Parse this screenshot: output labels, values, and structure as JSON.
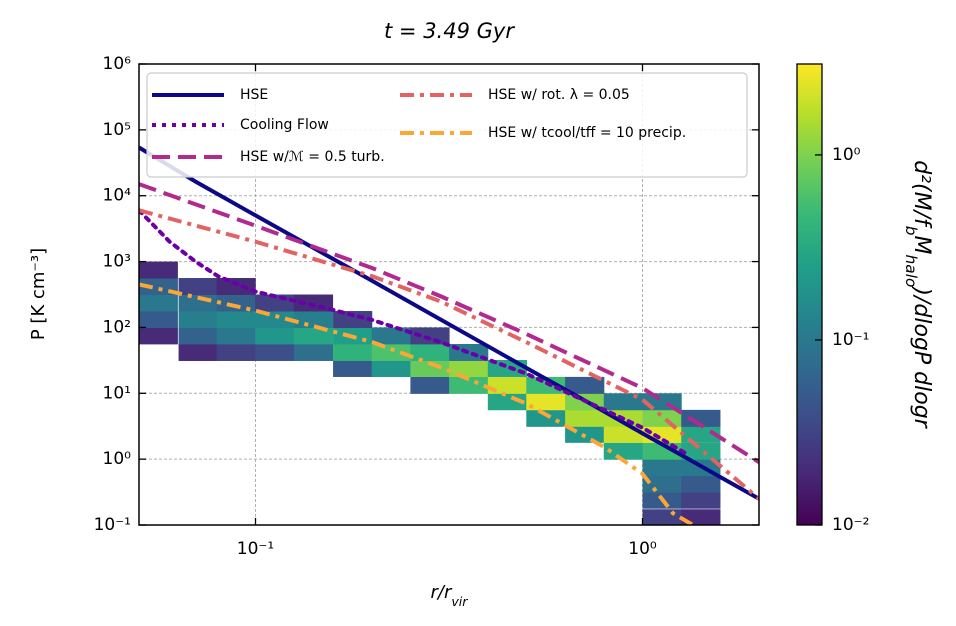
{
  "chart_data": {
    "type": "line",
    "title": "t = 3.49 Gyr",
    "xlabel": [
      "r/r",
      "vir"
    ],
    "ylabel": "P [K cm⁻³]",
    "xscale": "log",
    "yscale": "log",
    "xlim": [
      0.05,
      2
    ],
    "ylim": [
      0.1,
      1000000
    ],
    "xticks": [
      {
        "value": 0.1,
        "label": "10⁻¹"
      },
      {
        "value": 1,
        "label": "10⁰"
      }
    ],
    "yticks": [
      {
        "value": 0.1,
        "label": "10⁻¹"
      },
      {
        "value": 1,
        "label": "10⁰"
      },
      {
        "value": 10,
        "label": "10¹"
      },
      {
        "value": 100,
        "label": "10²"
      },
      {
        "value": 1000,
        "label": "10³"
      },
      {
        "value": 10000,
        "label": "10⁴"
      },
      {
        "value": 100000,
        "label": "10⁵"
      },
      {
        "value": 1000000,
        "label": "10⁶"
      }
    ],
    "grid": true,
    "legend": "upper left",
    "series": [
      {
        "name": "HSE",
        "color": "#0d0887",
        "dash": "solid",
        "x": [
          0.05,
          0.07,
          0.1,
          0.15,
          0.2,
          0.3,
          0.5,
          0.7,
          1.0,
          1.3,
          1.6,
          2.0
        ],
        "values": [
          54000,
          16400,
          5030,
          1320,
          511,
          133,
          24.5,
          8.1,
          2.46,
          1.04,
          0.52,
          0.25
        ]
      },
      {
        "name": "Cooling Flow",
        "color": "#6a00a8",
        "dash": "dotted",
        "x": [
          0.05,
          0.06,
          0.07,
          0.08,
          0.1,
          0.15,
          0.2,
          0.3,
          0.5,
          0.7,
          1.0,
          1.3
        ],
        "values": [
          6000,
          2000,
          1000,
          600,
          350,
          200,
          130,
          60,
          20,
          8,
          3,
          1.2
        ]
      },
      {
        "name": "HSE w/ℳ = 0.5 turb.",
        "color": "#b12a90",
        "dash": "dashed",
        "x": [
          0.05,
          0.1,
          0.2,
          0.3,
          0.5,
          1.0,
          2.0
        ],
        "values": [
          15000,
          3500,
          800,
          300,
          80,
          12,
          0.9
        ]
      },
      {
        "name": "HSE w/ rot. λ = 0.05",
        "color": "#e16462",
        "dash": "dashdot",
        "x": [
          0.05,
          0.1,
          0.2,
          0.3,
          0.5,
          1.0,
          2.0
        ],
        "values": [
          6000,
          2000,
          600,
          250,
          60,
          8,
          0.25
        ]
      },
      {
        "name": "HSE w/ tcool/tff = 10 precip.",
        "color": "#fca636",
        "dash": "dashdot",
        "x": [
          0.05,
          0.1,
          0.2,
          0.3,
          0.5,
          0.8,
          1.0,
          1.2,
          1.35
        ],
        "values": [
          450,
          180,
          60,
          25,
          7,
          1.5,
          0.6,
          0.15,
          0.1
        ]
      }
    ],
    "heatmap": {
      "cmap": "viridis",
      "clim": [
        0.01,
        3.1
      ],
      "cticks": [
        {
          "value": 0.01,
          "label": "10⁻²"
        },
        {
          "value": 0.1,
          "label": "10⁻¹"
        },
        {
          "value": 1,
          "label": "10⁰"
        }
      ],
      "colorbar_label": [
        "d²(M/f",
        "b",
        "M",
        "halo",
        ")/dlogP dlogr"
      ],
      "columns": [
        {
          "x": 0.056,
          "y": [
            75,
            133,
            237,
            422,
            750
          ],
          "z": [
            0.02,
            0.05,
            0.1,
            0.06,
            0.02
          ]
        },
        {
          "x": 0.071,
          "y": [
            42,
            75,
            133,
            237,
            422
          ],
          "z": [
            0.02,
            0.06,
            0.12,
            0.08,
            0.03
          ]
        },
        {
          "x": 0.089,
          "y": [
            42,
            75,
            133,
            237,
            422
          ],
          "z": [
            0.03,
            0.1,
            0.15,
            0.06,
            0.02
          ]
        },
        {
          "x": 0.112,
          "y": [
            42,
            75,
            133,
            237
          ],
          "z": [
            0.04,
            0.2,
            0.15,
            0.03
          ]
        },
        {
          "x": 0.141,
          "y": [
            42,
            75,
            133,
            237
          ],
          "z": [
            0.08,
            0.3,
            0.12,
            0.02
          ]
        },
        {
          "x": 0.178,
          "y": [
            24,
            42,
            75,
            133
          ],
          "z": [
            0.05,
            0.4,
            0.25,
            0.03
          ]
        },
        {
          "x": 0.224,
          "y": [
            24,
            42,
            75
          ],
          "z": [
            0.2,
            0.6,
            0.1
          ]
        },
        {
          "x": 0.282,
          "y": [
            13.3,
            24,
            42,
            75
          ],
          "z": [
            0.05,
            0.8,
            0.4,
            0.03
          ]
        },
        {
          "x": 0.355,
          "y": [
            13.3,
            24,
            42
          ],
          "z": [
            0.5,
            1.2,
            0.1
          ]
        },
        {
          "x": 0.447,
          "y": [
            7.5,
            13.3,
            24
          ],
          "z": [
            0.3,
            2,
            0.3
          ]
        },
        {
          "x": 0.562,
          "y": [
            4.2,
            7.5,
            13.3
          ],
          "z": [
            0.2,
            2.5,
            0.5
          ]
        },
        {
          "x": 0.708,
          "y": [
            2.4,
            4.2,
            7.5,
            13.3
          ],
          "z": [
            0.2,
            1.5,
            1,
            0.05
          ]
        },
        {
          "x": 0.891,
          "y": [
            1.33,
            2.4,
            4.2,
            7.5
          ],
          "z": [
            0.3,
            2,
            1.5,
            0.1
          ]
        },
        {
          "x": 1.122,
          "y": [
            0.13,
            0.24,
            0.42,
            0.75,
            1.33,
            2.4,
            4.2,
            7.5
          ],
          "z": [
            0.03,
            0.05,
            0.08,
            0.1,
            0.5,
            2.5,
            1,
            0.1
          ]
        },
        {
          "x": 1.413,
          "y": [
            0.13,
            0.24,
            0.42,
            0.75,
            1.33,
            2.4,
            4.2
          ],
          "z": [
            0.02,
            0.03,
            0.05,
            0.1,
            0.3,
            0.3,
            0.05
          ]
        }
      ]
    }
  }
}
